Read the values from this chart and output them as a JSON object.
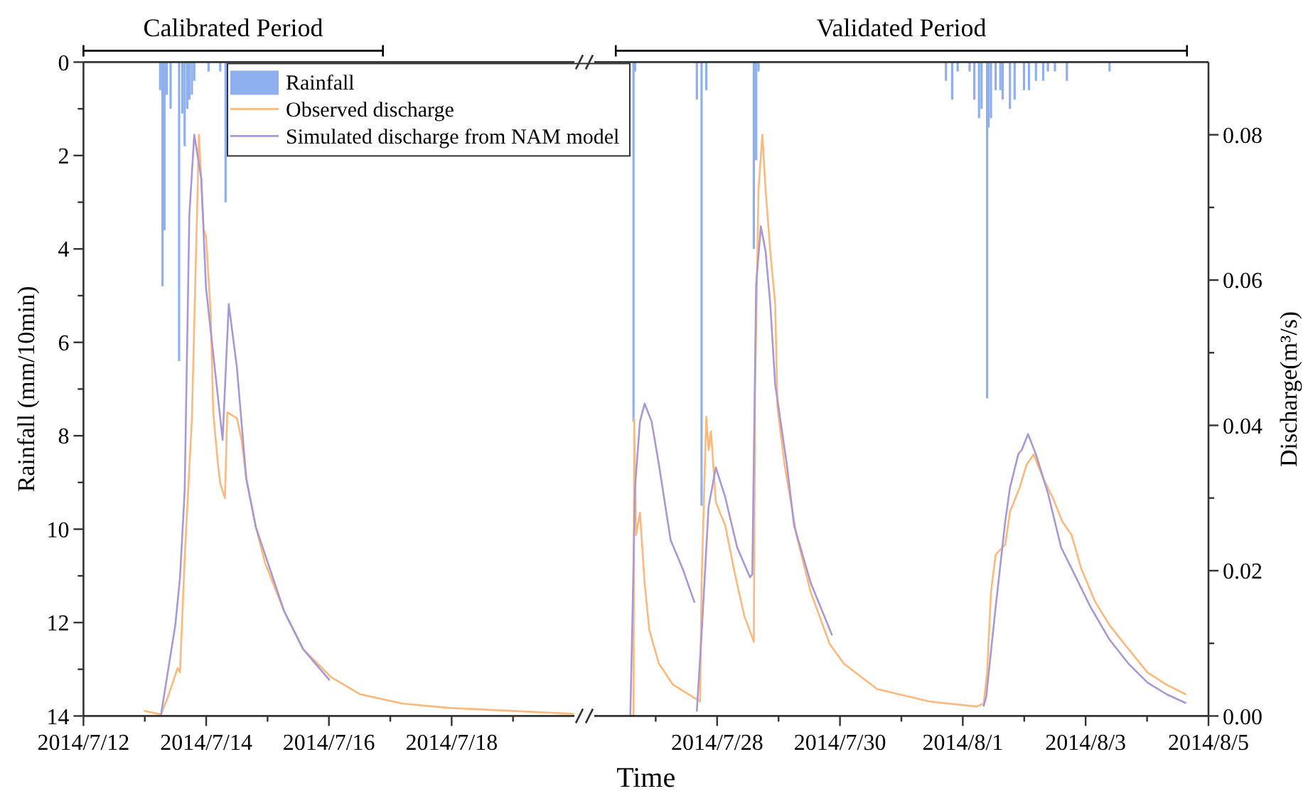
{
  "chart_data": [
    {
      "type": "line",
      "xlabel": "Time",
      "ylabel": "Rainfall (mm/10min)",
      "xlim": [
        "2014-07-12",
        "2014-07-20"
      ],
      "xticks": [
        {
          "value": "2014-07-12",
          "label": "2014/7/12"
        },
        {
          "value": "2014-07-13",
          "label": null
        },
        {
          "value": "2014-07-14",
          "label": "2014/7/14"
        },
        {
          "value": "2014-07-15",
          "label": null
        },
        {
          "value": "2014-07-16",
          "label": "2014/7/16"
        },
        {
          "value": "2014-07-17",
          "label": null
        },
        {
          "value": "2014-07-18",
          "label": "2014/7/18"
        },
        {
          "value": "2014-07-19",
          "label": null
        }
      ],
      "ylim": [
        14,
        0
      ],
      "yticks": [
        0,
        {
          "value": 1,
          "label": null
        },
        2,
        {
          "value": 3,
          "label": null
        },
        4,
        {
          "value": 5,
          "label": null
        },
        6,
        {
          "value": 7,
          "label": null
        },
        8,
        {
          "value": 9,
          "label": null
        },
        10,
        {
          "value": 11,
          "label": null
        },
        12,
        {
          "value": 13,
          "label": null
        },
        14
      ],
      "y2lim": [
        0,
        0.09
      ],
      "tick_labels": [
        "x",
        "y"
      ],
      "legend": "top right",
      "title": "Calibrated Period",
      "series": [
        {
          "name": "Rainfall",
          "type": "bar",
          "axis": "y",
          "color": "#8fb0ee",
          "x": [
            "2014-07-13T06:00",
            "2014-07-13T06:55",
            "2014-07-13T07:40",
            "2014-07-13T08:35",
            "2014-07-13T10:05",
            "2014-07-13T13:25",
            "2014-07-13T14:40",
            "2014-07-13T15:35",
            "2014-07-13T16:35",
            "2014-07-13T17:25",
            "2014-07-13T18:25",
            "2014-07-13T19:20",
            "2014-07-14T00:55",
            "2014-07-14T05:30",
            "2014-07-14T07:35"
          ],
          "values": [
            0.6,
            4.8,
            3.6,
            0.7,
            1.0,
            6.4,
            1.1,
            1.8,
            1.0,
            0.8,
            0.7,
            0.4,
            0.2,
            0.2,
            3.0
          ]
        },
        {
          "name": "Observed discharge",
          "axis": "y2",
          "color": "#fdb97d",
          "x": [
            "2014-07-12T23:55",
            "2014-07-13T06:20",
            "2014-07-13T09:05",
            "2014-07-13T12:50",
            "2014-07-13T13:45",
            "2014-07-13T15:35",
            "2014-07-13T18:25",
            "2014-07-13T21:10",
            "2014-07-13T23:00",
            "2014-07-13T23:55",
            "2014-07-14T01:45",
            "2014-07-14T02:45",
            "2014-07-14T04:35",
            "2014-07-14T05:30",
            "2014-07-14T07:20",
            "2014-07-14T08:15",
            "2014-07-14T12:00",
            "2014-07-14T13:50",
            "2014-07-14T15:40",
            "2014-07-14T19:25",
            "2014-07-14T23:05",
            "2014-07-15T06:30",
            "2014-07-15T13:55",
            "2014-07-16T01:00",
            "2014-07-16T12:05",
            "2014-07-17T04:45",
            "2014-07-17T23:20",
            "2014-07-19T23:25"
          ],
          "values": [
            0.0007,
            0.0002,
            0.0027,
            0.0066,
            0.006,
            0.0217,
            0.041,
            0.08,
            0.067,
            0.066,
            0.0555,
            0.0418,
            0.0346,
            0.032,
            0.03,
            0.0418,
            0.041,
            0.038,
            0.0327,
            0.026,
            0.021,
            0.0144,
            0.0092,
            0.0053,
            0.003,
            0.0017,
            0.0011,
            0.0003
          ]
        },
        {
          "name": "Simulated discharge from NAM model",
          "axis": "y2",
          "color": "#a898d6",
          "x": [
            "2014-07-13T06:20",
            "2014-07-13T11:55",
            "2014-07-13T13:45",
            "2014-07-13T15:35",
            "2014-07-13T17:25",
            "2014-07-13T19:20",
            "2014-07-13T22:05",
            "2014-07-13T23:55",
            "2014-07-14T06:25",
            "2014-07-14T08:50",
            "2014-07-14T12:00",
            "2014-07-14T15:40",
            "2014-07-14T19:25",
            "2014-07-15T06:30",
            "2014-07-15T13:55",
            "2014-07-16T00:05"
          ],
          "values": [
            0.0002,
            0.0125,
            0.019,
            0.031,
            0.069,
            0.08,
            0.074,
            0.059,
            0.038,
            0.0567,
            0.048,
            0.0327,
            0.026,
            0.0144,
            0.0092,
            0.005
          ]
        }
      ]
    },
    {
      "type": "line",
      "y2label": "Discharge(m³/s)",
      "xlim": [
        "2014-07-26",
        "2014-08-05"
      ],
      "xticks": [
        {
          "value": "2014-07-27",
          "label": null
        },
        {
          "value": "2014-07-28",
          "label": "2014/7/28"
        },
        {
          "value": "2014-07-29",
          "label": null
        },
        {
          "value": "2014-07-30",
          "label": "2014/7/30"
        },
        {
          "value": "2014-07-31",
          "label": null
        },
        {
          "value": "2014-08-01",
          "label": "2014/8/1"
        },
        {
          "value": "2014-08-02",
          "label": null
        },
        {
          "value": "2014-08-03",
          "label": "2014/8/3"
        },
        {
          "value": "2014-08-04",
          "label": null
        },
        {
          "value": "2014-08-05",
          "label": "2014/8/5"
        }
      ],
      "ylim": [
        14,
        0
      ],
      "y2lim": [
        0,
        0.09
      ],
      "y2ticks": [
        {
          "value": 0,
          "label": "0.00"
        },
        {
          "value": 0.01,
          "label": null
        },
        {
          "value": 0.02,
          "label": "0.02"
        },
        {
          "value": 0.03,
          "label": null
        },
        {
          "value": 0.04,
          "label": "0.04"
        },
        {
          "value": 0.05,
          "label": null
        },
        {
          "value": 0.06,
          "label": "0.06"
        },
        {
          "value": 0.07,
          "label": null
        },
        {
          "value": 0.08,
          "label": "0.08"
        }
      ],
      "tick_labels": [
        "x",
        "y2"
      ],
      "title": "Validated Period",
      "series": [
        {
          "type": "bar",
          "axis": "y",
          "color": "#8fb0ee",
          "x": [
            "2014-07-26T15:20",
            "2014-07-26T15:55",
            "2014-07-27T16:05",
            "2014-07-27T17:55",
            "2014-07-27T19:45",
            "2014-07-28T14:20",
            "2014-07-28T15:15",
            "2014-07-28T16:10",
            "2014-07-31T17:25",
            "2014-07-31T19:50",
            "2014-07-31T22:00",
            "2014-08-01T02:40",
            "2014-08-01T04:30",
            "2014-08-01T06:20",
            "2014-08-01T07:20",
            "2014-08-01T09:30",
            "2014-08-01T10:05",
            "2014-08-01T11:00",
            "2014-08-01T12:50",
            "2014-08-01T14:40",
            "2014-08-01T15:35",
            "2014-08-01T18:25",
            "2014-08-01T20:15",
            "2014-08-01T23:55",
            "2014-08-02T01:50",
            "2014-08-02T04:35",
            "2014-08-02T07:25",
            "2014-08-02T09:15",
            "2014-08-02T12:00",
            "2014-08-02T16:40",
            "2014-08-03T09:20"
          ],
          "values": [
            7.7,
            0.2,
            0.8,
            9.5,
            0.6,
            4.0,
            2.1,
            0.2,
            0.4,
            0.8,
            0.2,
            0.2,
            0.8,
            1.2,
            1.0,
            7.2,
            1.4,
            1.2,
            0.6,
            0.6,
            0.8,
            1.0,
            0.8,
            0.6,
            0.6,
            0.4,
            0.4,
            0.2,
            0.2,
            0.4,
            0.2
          ]
        },
        {
          "axis": "y2",
          "color": "#fdb97d",
          "x": [
            "2014-07-26T14:05",
            "2014-07-26T15:20",
            "2014-07-26T15:35",
            "2014-07-26T16:20",
            "2014-07-26T17:50",
            "2014-07-26T18:40",
            "2014-07-26T19:40",
            "2014-07-26T21:30",
            "2014-07-27T01:15",
            "2014-07-27T06:45",
            "2014-07-27T14:10",
            "2014-07-27T17:20",
            "2014-07-27T17:55",
            "2014-07-27T19:45",
            "2014-07-27T20:40",
            "2014-07-27T21:35",
            "2014-07-27T23:30",
            "2014-07-28T03:10",
            "2014-07-28T06:55",
            "2014-07-28T10:35",
            "2014-07-28T13:20",
            "2014-07-28T14:20",
            "2014-07-28T14:50",
            "2014-07-28T16:10",
            "2014-07-28T17:40",
            "2014-07-28T18:55",
            "2014-07-28T20:45",
            "2014-07-28T22:40",
            "2014-07-28T23:35",
            "2014-07-29T02:20",
            "2014-07-29T07:00",
            "2014-07-29T12:35",
            "2014-07-29T20:00",
            "2014-07-30T01:30",
            "2014-07-30T14:30",
            "2014-07-31T10:55",
            "2014-08-01T05:25",
            "2014-08-01T08:10",
            "2014-08-01T09:30",
            "2014-08-01T11:00",
            "2014-08-01T12:50",
            "2014-08-01T16:35",
            "2014-08-01T18:25",
            "2014-08-01T22:10",
            "2014-08-02T00:55",
            "2014-08-02T03:40",
            "2014-08-02T07:25",
            "2014-08-02T11:05",
            "2014-08-02T14:50",
            "2014-08-02T18:30",
            "2014-08-02T22:15",
            "2014-08-03T03:45",
            "2014-08-03T09:20",
            "2014-08-03T16:45",
            "2014-08-04T00:10",
            "2014-08-04T07:35",
            "2014-08-04T15:00"
          ],
          "values": [
            0.0001,
            0,
            0.041,
            0.0249,
            0.028,
            0.0236,
            0.0183,
            0.0118,
            0.0072,
            0.0043,
            0.0027,
            0.002,
            0.0183,
            0.0412,
            0.0366,
            0.0392,
            0.0294,
            0.0262,
            0.0196,
            0.0138,
            0.0112,
            0.0102,
            0.045,
            0.0725,
            0.08,
            0.0725,
            0.064,
            0.0568,
            0.0425,
            0.0346,
            0.0249,
            0.017,
            0.0099,
            0.0072,
            0.0037,
            0.002,
            0.0013,
            0.0017,
            0.006,
            0.017,
            0.0222,
            0.0236,
            0.0281,
            0.0314,
            0.0346,
            0.036,
            0.0327,
            0.0301,
            0.0268,
            0.0249,
            0.0203,
            0.0157,
            0.0125,
            0.0092,
            0.006,
            0.0043,
            0.003
          ]
        },
        {
          "axis": "y2",
          "color": "#a898d6",
          "x": [
            "2014-07-26T14:05",
            "2014-07-26T15:00",
            "2014-07-26T15:55",
            "2014-07-26T17:50",
            "2014-07-26T19:40",
            "2014-07-26T22:25",
            "2014-07-27T01:15",
            "2014-07-27T05:50",
            "2014-07-27T10:30",
            "2014-07-27T15:05"
          ],
          "values": [
            0,
            0.015,
            0.0314,
            0.0405,
            0.043,
            0.0405,
            0.0346,
            0.0242,
            0.0203,
            0.0157
          ]
        },
        {
          "axis": "y2",
          "color": "#a898d6",
          "x": [
            "2014-07-27T16:05",
            "2014-07-27T17:55",
            "2014-07-27T20:40",
            "2014-07-27T23:30",
            "2014-07-28T03:10",
            "2014-07-28T07:50",
            "2014-07-28T12:50",
            "2014-07-28T13:45",
            "2014-07-28T15:15",
            "2014-07-28T17:05",
            "2014-07-28T18:55",
            "2014-07-28T20:45",
            "2014-07-28T22:40",
            "2014-07-29T03:15",
            "2014-07-29T06:05",
            "2014-07-29T12:35",
            "2014-07-29T20:50"
          ],
          "values": [
            0.0007,
            0.0112,
            0.0288,
            0.0342,
            0.0301,
            0.0232,
            0.0191,
            0.0195,
            0.0594,
            0.0674,
            0.064,
            0.0568,
            0.0457,
            0.0346,
            0.0262,
            0.0183,
            0.0112
          ]
        },
        {
          "axis": "y2",
          "color": "#a898d6",
          "x": [
            "2014-08-01T08:10",
            "2014-08-01T09:10",
            "2014-08-01T12:50",
            "2014-08-01T16:35",
            "2014-08-01T18:25",
            "2014-08-01T21:45",
            "2014-08-01T23:00",
            "2014-08-02T01:30",
            "2014-08-02T04:35",
            "2014-08-02T09:15",
            "2014-08-02T14:25",
            "2014-08-02T18:30",
            "2014-08-03T01:55",
            "2014-08-03T09:20",
            "2014-08-03T16:45",
            "2014-08-04T00:10",
            "2014-08-04T07:35",
            "2014-08-04T15:00"
          ],
          "values": [
            0.0014,
            0.0027,
            0.015,
            0.0268,
            0.0314,
            0.0361,
            0.0366,
            0.0388,
            0.036,
            0.0307,
            0.0232,
            0.0203,
            0.015,
            0.0105,
            0.0072,
            0.0046,
            0.003,
            0.0018
          ]
        }
      ]
    }
  ]
}
